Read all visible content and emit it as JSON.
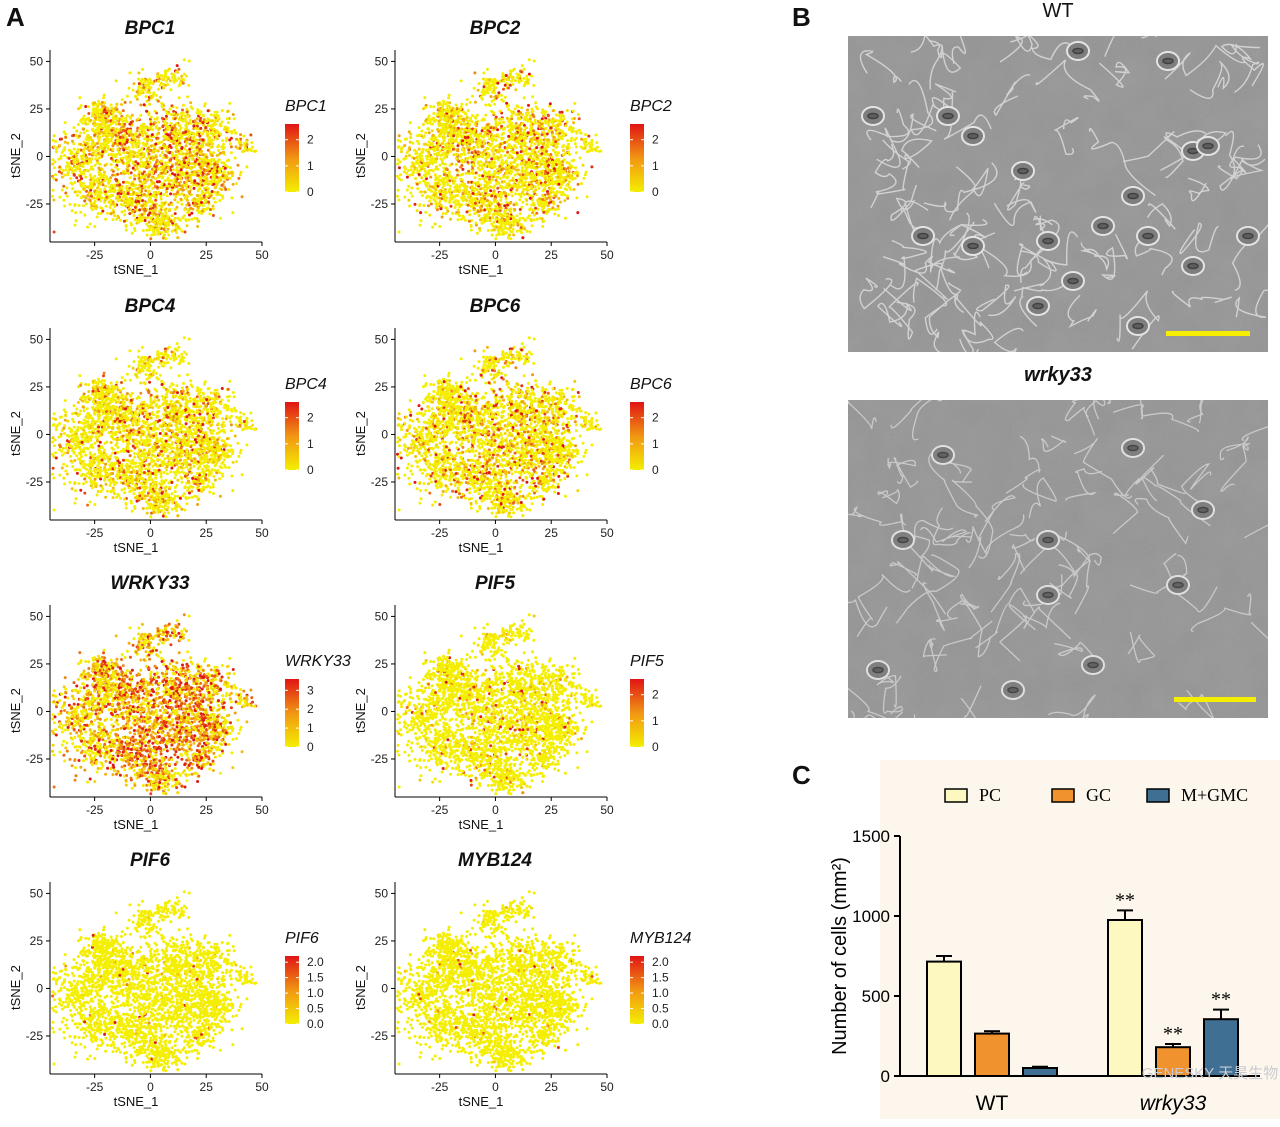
{
  "panels": {
    "a": "A",
    "b": "B",
    "c": "C"
  },
  "tsne": {
    "x_label": "tSNE_1",
    "y_label": "tSNE_2",
    "x_ticks": [
      "-25",
      "0",
      "25",
      "50"
    ],
    "y_ticks": [
      "50",
      "25",
      "0",
      "-25"
    ],
    "plots": [
      {
        "gene": "BPC1",
        "legend_title": "BPC1",
        "legend_ticks": [
          "2",
          "1",
          "0"
        ],
        "max": 2.6,
        "intensity": 0.35
      },
      {
        "gene": "BPC2",
        "legend_title": "BPC2",
        "legend_ticks": [
          "2",
          "1",
          "0"
        ],
        "max": 2.6,
        "intensity": 0.25
      },
      {
        "gene": "BPC4",
        "legend_title": "BPC4",
        "legend_ticks": [
          "2",
          "1",
          "0"
        ],
        "max": 2.6,
        "intensity": 0.22
      },
      {
        "gene": "BPC6",
        "legend_title": "BPC6",
        "legend_ticks": [
          "2",
          "1",
          "0"
        ],
        "max": 2.6,
        "intensity": 0.25
      },
      {
        "gene": "WRKY33",
        "legend_title": "WRKY33",
        "legend_ticks": [
          "3",
          "2",
          "1",
          "0"
        ],
        "max": 3.6,
        "intensity": 0.65
      },
      {
        "gene": "PIF5",
        "legend_title": "PIF5",
        "legend_ticks": [
          "2",
          "1",
          "0"
        ],
        "max": 2.6,
        "intensity": 0.08
      },
      {
        "gene": "PIF6",
        "legend_title": "PIF6",
        "legend_ticks": [
          "2.0",
          "1.5",
          "1.0",
          "0.5",
          "0.0"
        ],
        "max": 2.2,
        "intensity": 0.02
      },
      {
        "gene": "MYB124",
        "legend_title": "MYB124",
        "legend_ticks": [
          "2.0",
          "1.5",
          "1.0",
          "0.5",
          "0.0"
        ],
        "max": 2.2,
        "intensity": 0.02
      }
    ]
  },
  "micro": {
    "wt_title": "WT",
    "mutant_title": "wrky33",
    "scale_bar_color": "#f5ee00"
  },
  "chart_data": {
    "type": "bar",
    "ylabel": "Number of cells (mm²)",
    "ylim": [
      0,
      1500
    ],
    "y_ticks": [
      "1500",
      "1000",
      "500",
      "0"
    ],
    "categories": [
      "WT",
      "wrky33"
    ],
    "series": [
      {
        "name": "PC",
        "color": "#fdf8bf",
        "values": [
          715,
          975
        ],
        "errors": [
          35,
          60
        ],
        "marks": [
          "",
          "**"
        ]
      },
      {
        "name": "GC",
        "color": "#f0922e",
        "values": [
          265,
          180
        ],
        "errors": [
          15,
          20
        ],
        "marks": [
          "",
          "**"
        ]
      },
      {
        "name": "M+GMC",
        "color": "#3f6f93",
        "values": [
          50,
          355
        ],
        "errors": [
          8,
          60
        ],
        "marks": [
          "",
          "**"
        ]
      }
    ],
    "legend_position": "top",
    "watermark": "GENESKY 天昊生物"
  }
}
